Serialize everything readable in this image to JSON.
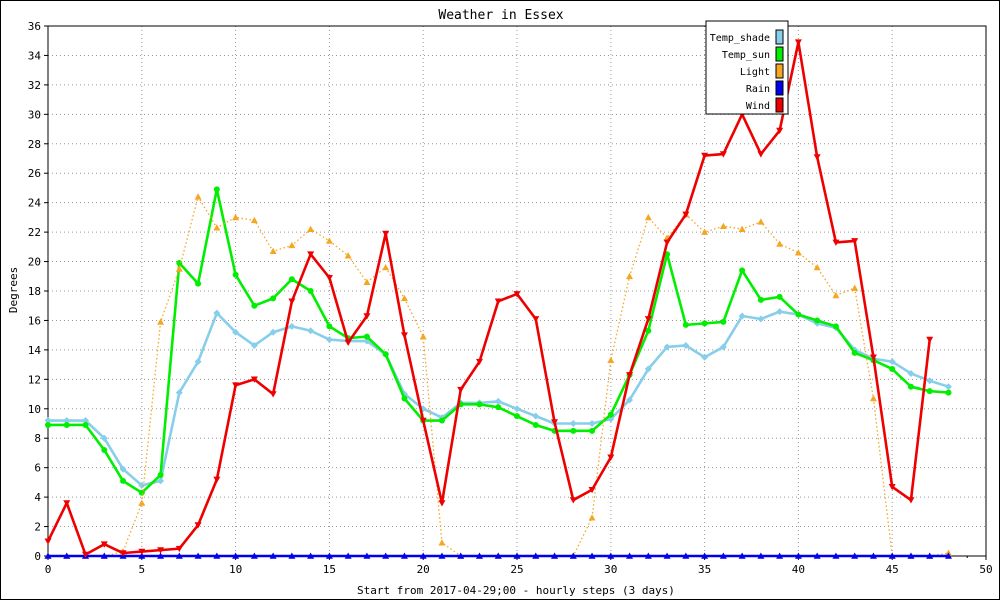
{
  "chart_data": {
    "type": "line",
    "title": "Weather in Essex",
    "xlabel": "Start from 2017-04-29;00 - hourly steps (3 days)",
    "ylabel": "Degrees",
    "xlim": [
      0,
      50
    ],
    "ylim": [
      0,
      36
    ],
    "xticks": [
      0,
      5,
      10,
      15,
      20,
      25,
      30,
      35,
      40,
      45,
      50
    ],
    "yticks": [
      0,
      2,
      4,
      6,
      8,
      10,
      12,
      14,
      16,
      18,
      20,
      22,
      24,
      26,
      28,
      30,
      32,
      34,
      36
    ],
    "grid": true,
    "legend_position": "top-right",
    "series": [
      {
        "name": "Temp_shade",
        "color": "#87ceeb",
        "marker": "diamond",
        "x": [
          0,
          1,
          2,
          3,
          4,
          5,
          6,
          7,
          8,
          9,
          10,
          11,
          12,
          13,
          14,
          15,
          16,
          17,
          18,
          19,
          20,
          21,
          22,
          23,
          24,
          25,
          26,
          27,
          28,
          29,
          30,
          31,
          32,
          33,
          34,
          35,
          36,
          37,
          38,
          39,
          40,
          41,
          42,
          43,
          44,
          45,
          46,
          47,
          48
        ],
        "values": [
          9.2,
          9.2,
          9.2,
          8.0,
          5.9,
          4.8,
          5.1,
          11.1,
          13.2,
          16.5,
          15.2,
          14.3,
          15.2,
          15.6,
          15.3,
          14.7,
          14.6,
          14.6,
          13.7,
          11.0,
          10.0,
          9.4,
          10.4,
          10.4,
          10.5,
          10.0,
          9.5,
          9.0,
          9.0,
          9.0,
          9.3,
          10.6,
          12.7,
          14.2,
          14.3,
          13.5,
          14.2,
          16.3,
          16.1,
          16.6,
          16.4,
          15.8,
          15.5,
          14.0,
          13.4,
          13.2,
          12.4,
          11.9,
          11.5
        ]
      },
      {
        "name": "Temp_sun",
        "color": "#00ee00",
        "marker": "circle",
        "x": [
          0,
          1,
          2,
          3,
          4,
          5,
          6,
          7,
          8,
          9,
          10,
          11,
          12,
          13,
          14,
          15,
          16,
          17,
          18,
          19,
          20,
          21,
          22,
          23,
          24,
          25,
          26,
          27,
          28,
          29,
          30,
          31,
          32,
          33,
          34,
          35,
          36,
          37,
          38,
          39,
          40,
          41,
          42,
          43,
          44,
          45,
          46,
          47,
          48
        ],
        "values": [
          8.9,
          8.9,
          8.9,
          7.2,
          5.1,
          4.3,
          5.5,
          19.9,
          18.5,
          24.9,
          19.1,
          17.0,
          17.5,
          18.8,
          18.0,
          15.6,
          14.8,
          14.9,
          13.7,
          10.7,
          9.2,
          9.2,
          10.3,
          10.3,
          10.1,
          9.5,
          8.9,
          8.5,
          8.5,
          8.5,
          9.6,
          12.3,
          15.3,
          20.5,
          15.7,
          15.8,
          15.9,
          19.4,
          17.4,
          17.6,
          16.4,
          16.0,
          15.6,
          13.8,
          13.3,
          12.7,
          11.5,
          11.2,
          11.1
        ]
      },
      {
        "name": "Light",
        "color": "#f5a623",
        "marker": "triangle-up",
        "line_style": "dotted",
        "x": [
          0,
          1,
          2,
          3,
          4,
          5,
          6,
          7,
          8,
          9,
          10,
          11,
          12,
          13,
          14,
          15,
          16,
          17,
          18,
          19,
          20,
          21,
          22,
          23,
          24,
          25,
          26,
          27,
          28,
          29,
          30,
          31,
          32,
          33,
          34,
          35,
          36,
          37,
          38,
          39,
          40,
          41,
          42,
          43,
          44,
          45,
          46,
          47,
          48
        ],
        "values": [
          0,
          0,
          0,
          0,
          0.3,
          3.6,
          15.9,
          19.5,
          24.4,
          22.3,
          23.0,
          22.8,
          20.7,
          21.1,
          22.2,
          21.4,
          20.4,
          18.6,
          19.6,
          17.5,
          14.9,
          0.9,
          0,
          0,
          0,
          0,
          0,
          0,
          0,
          2.6,
          13.3,
          19.0,
          23.0,
          21.6,
          23.2,
          22.0,
          22.4,
          22.2,
          22.7,
          21.2,
          20.6,
          19.6,
          17.7,
          18.2,
          10.7,
          0,
          0,
          0,
          0.2
        ]
      },
      {
        "name": "Rain",
        "color": "#0000ee",
        "marker": "triangle-up",
        "x": [
          0,
          1,
          2,
          3,
          4,
          5,
          6,
          7,
          8,
          9,
          10,
          11,
          12,
          13,
          14,
          15,
          16,
          17,
          18,
          19,
          20,
          21,
          22,
          23,
          24,
          25,
          26,
          27,
          28,
          29,
          30,
          31,
          32,
          33,
          34,
          35,
          36,
          37,
          38,
          39,
          40,
          41,
          42,
          43,
          44,
          45,
          46,
          47,
          48
        ],
        "values": [
          0,
          0,
          0,
          0,
          0,
          0,
          0,
          0,
          0,
          0,
          0,
          0,
          0,
          0,
          0,
          0,
          0,
          0,
          0,
          0,
          0,
          0,
          0,
          0,
          0,
          0,
          0,
          0,
          0,
          0,
          0,
          0,
          0,
          0,
          0,
          0,
          0,
          0,
          0,
          0,
          0,
          0,
          0,
          0,
          0,
          0,
          0,
          0,
          0
        ]
      },
      {
        "name": "Wind",
        "color": "#ee0000",
        "marker": "triangle-down",
        "x": [
          0,
          1,
          2,
          3,
          4,
          5,
          6,
          7,
          8,
          9,
          10,
          11,
          12,
          13,
          14,
          15,
          16,
          17,
          18,
          19,
          20,
          21,
          22,
          23,
          24,
          25,
          26,
          27,
          28,
          29,
          30,
          31,
          32,
          33,
          34,
          35,
          36,
          37,
          38,
          39,
          40,
          41,
          42,
          43,
          44,
          45,
          46,
          47
        ],
        "values": [
          1.0,
          3.6,
          0.1,
          0.8,
          0.2,
          0.3,
          0.4,
          0.5,
          2.1,
          5.2,
          11.6,
          12.0,
          11.0,
          17.3,
          20.5,
          18.9,
          14.5,
          16.3,
          21.9,
          15.0,
          9.2,
          3.6,
          11.3,
          13.2,
          17.3,
          17.8,
          16.1,
          9.1,
          3.8,
          4.5,
          6.7,
          12.3,
          16.1,
          21.3,
          23.2,
          27.2,
          27.3,
          30.0,
          27.3,
          28.9,
          34.9,
          27.1,
          21.3,
          21.4,
          13.5,
          4.7,
          3.8,
          14.7
        ]
      }
    ]
  }
}
